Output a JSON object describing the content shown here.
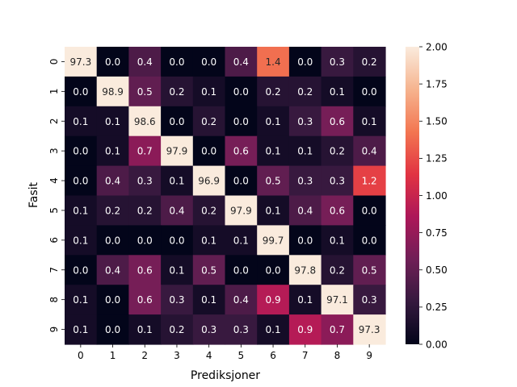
{
  "chart_data": {
    "type": "heatmap",
    "title": "",
    "xlabel": "Prediksjoner",
    "ylabel": "Fasit",
    "x_categories": [
      "0",
      "1",
      "2",
      "3",
      "4",
      "5",
      "6",
      "7",
      "8",
      "9"
    ],
    "y_categories": [
      "0",
      "1",
      "2",
      "3",
      "4",
      "5",
      "6",
      "7",
      "8",
      "9"
    ],
    "values": [
      [
        97.3,
        0.0,
        0.4,
        0.0,
        0.0,
        0.4,
        1.4,
        0.0,
        0.3,
        0.2
      ],
      [
        0.0,
        98.9,
        0.5,
        0.2,
        0.1,
        0.0,
        0.2,
        0.2,
        0.1,
        0.0
      ],
      [
        0.1,
        0.1,
        98.6,
        0.0,
        0.2,
        0.0,
        0.1,
        0.3,
        0.6,
        0.1
      ],
      [
        0.0,
        0.1,
        0.7,
        97.9,
        0.0,
        0.6,
        0.1,
        0.1,
        0.2,
        0.4
      ],
      [
        0.0,
        0.4,
        0.3,
        0.1,
        96.9,
        0.0,
        0.5,
        0.3,
        0.3,
        1.2
      ],
      [
        0.1,
        0.2,
        0.2,
        0.4,
        0.2,
        97.9,
        0.1,
        0.4,
        0.6,
        0.0
      ],
      [
        0.1,
        0.0,
        0.0,
        0.0,
        0.1,
        0.1,
        99.7,
        0.0,
        0.1,
        0.0
      ],
      [
        0.0,
        0.4,
        0.6,
        0.1,
        0.5,
        0.0,
        0.0,
        97.8,
        0.2,
        0.5
      ],
      [
        0.1,
        0.0,
        0.6,
        0.3,
        0.1,
        0.4,
        0.9,
        0.1,
        97.1,
        0.3
      ],
      [
        0.1,
        0.0,
        0.1,
        0.2,
        0.3,
        0.3,
        0.1,
        0.9,
        0.7,
        97.3
      ]
    ],
    "colorbar": {
      "range": [
        0.0,
        2.0
      ],
      "ticks": [
        "0.00",
        "0.25",
        "0.50",
        "0.75",
        "1.00",
        "1.25",
        "1.50",
        "1.75",
        "2.00"
      ],
      "colormap": "rocket",
      "stops": [
        "#03051a",
        "#35193e",
        "#701f57",
        "#ad1759",
        "#e13342",
        "#f37651",
        "#f6b48f",
        "#faebdd"
      ]
    },
    "grid": false,
    "legend": "colorbar-right"
  }
}
